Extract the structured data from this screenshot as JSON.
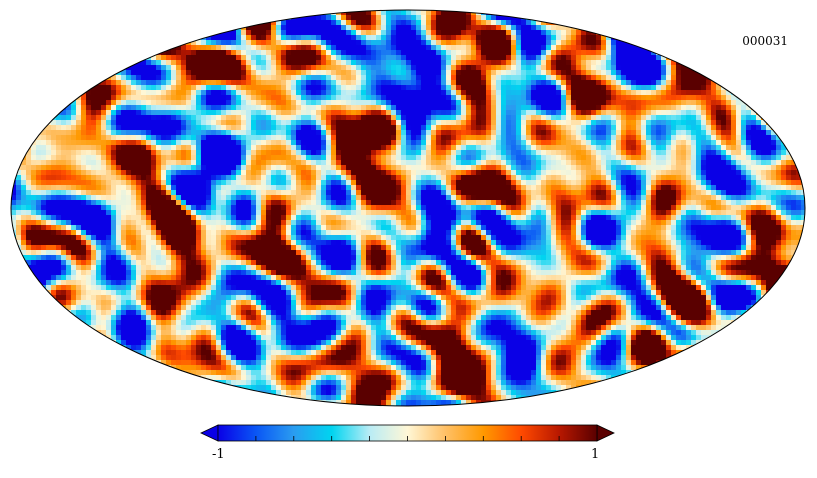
{
  "map": {
    "id_label": "000031",
    "projection": "mollweide",
    "colormap": [
      "#0a00e6",
      "#0a56f5",
      "#2a9cf0",
      "#00d4f0",
      "#b9ecf5",
      "#fff7d6",
      "#ffc066",
      "#ff9900",
      "#ff4a00",
      "#b81800",
      "#5a0000"
    ]
  },
  "chart_data": {
    "type": "heatmap",
    "title": "",
    "colorbar": {
      "min_label": "-1",
      "max_label": "1",
      "range": [
        -1,
        1
      ],
      "extend": "both",
      "ticks": [
        -0.8,
        -0.6,
        -0.4,
        -0.2,
        0,
        0.2,
        0.4,
        0.6,
        0.8
      ]
    }
  }
}
